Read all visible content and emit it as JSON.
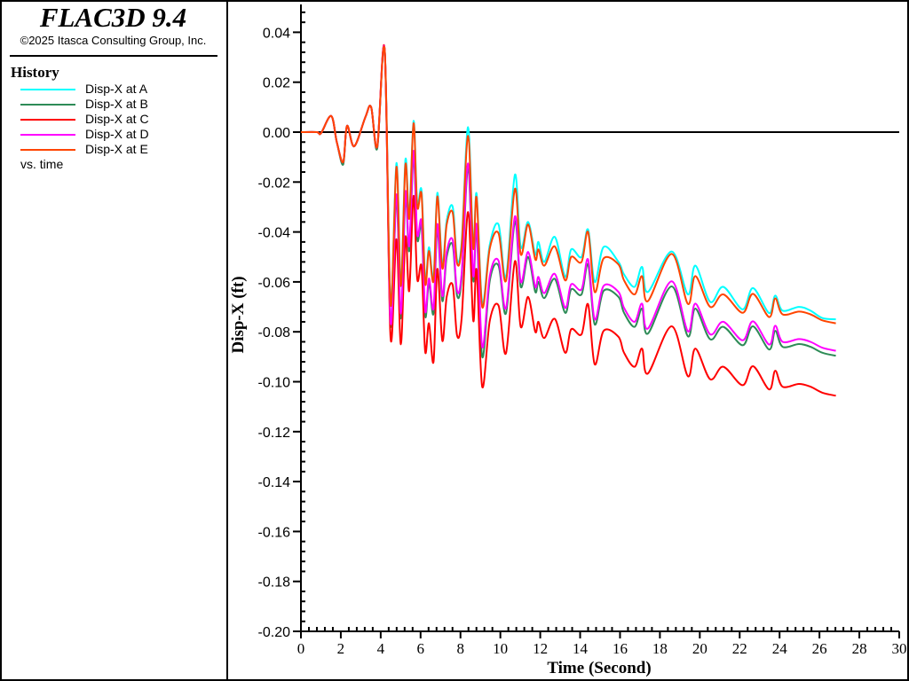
{
  "header": {
    "title": "FLAC3D 9.4",
    "copyright": "©2025 Itasca Consulting Group, Inc."
  },
  "legend": {
    "heading": "History",
    "footer": "vs. time"
  },
  "chart_data": {
    "type": "line",
    "xlabel": "Time (Second)",
    "ylabel": "Disp-X (ft)",
    "xlim": [
      0,
      30
    ],
    "ylim": [
      -0.2,
      0.05
    ],
    "xticks": [
      "0",
      "2",
      "4",
      "6",
      "8",
      "10",
      "12",
      "14",
      "16",
      "18",
      "20",
      "22",
      "24",
      "26",
      "28",
      "30"
    ],
    "yticks": [
      "0.04",
      "0.02",
      "0.00",
      "-0.02",
      "-0.04",
      "-0.06",
      "-0.08",
      "-0.10",
      "-0.12",
      "-0.14",
      "-0.16",
      "-0.18",
      "-0.20"
    ],
    "ytick_values": [
      0.04,
      0.02,
      0,
      -0.02,
      -0.04,
      -0.06,
      -0.08,
      -0.1,
      -0.12,
      -0.14,
      -0.16,
      -0.18,
      -0.2
    ],
    "reference_line": 0,
    "legend_placement": "left-panel",
    "x": [
      0,
      0.8,
      1.0,
      1.52,
      1.8,
      2.12,
      2.31,
      2.67,
      3.23,
      3.52,
      3.83,
      4.2,
      4.49,
      4.79,
      5.01,
      5.24,
      5.43,
      5.65,
      5.83,
      6.05,
      6.23,
      6.42,
      6.65,
      6.84,
      7.09,
      7.31,
      7.61,
      7.83,
      8.06,
      8.38,
      8.64,
      8.81,
      9.09,
      9.47,
      9.91,
      10.28,
      10.73,
      11.02,
      11.39,
      11.75,
      11.91,
      12.2,
      12.73,
      13.25,
      13.55,
      14.07,
      14.4,
      14.73,
      15.18,
      15.92,
      16.2,
      16.73,
      17.1,
      17.4,
      18.59,
      19.4,
      19.78,
      20.52,
      21.18,
      22.15,
      22.67,
      23.48,
      23.78,
      24.15,
      24.97,
      25.55,
      26.15,
      26.82
    ],
    "series": [
      {
        "name": "Disp-X at A",
        "color": "#00ffff",
        "values": [
          0,
          0,
          -0.0005,
          0.0065,
          -0.004,
          -0.012,
          0.0025,
          -0.0057,
          0.006,
          0.01,
          -0.0057,
          0.0327,
          -0.068,
          -0.0124,
          -0.0602,
          -0.011,
          -0.0331,
          0.0045,
          -0.0283,
          -0.0235,
          -0.0592,
          -0.0461,
          -0.0581,
          -0.0243,
          -0.0531,
          -0.0355,
          -0.03,
          -0.051,
          -0.0439,
          0.002,
          -0.045,
          -0.0247,
          -0.0685,
          -0.045,
          -0.037,
          -0.058,
          -0.017,
          -0.046,
          -0.036,
          -0.049,
          -0.044,
          -0.052,
          -0.042,
          -0.058,
          -0.047,
          -0.05,
          -0.039,
          -0.06,
          -0.046,
          -0.052,
          -0.057,
          -0.062,
          -0.054,
          -0.064,
          -0.0478,
          -0.065,
          -0.0535,
          -0.068,
          -0.062,
          -0.071,
          -0.0625,
          -0.0725,
          -0.0655,
          -0.0715,
          -0.07,
          -0.0715,
          -0.0745,
          -0.075
        ]
      },
      {
        "name": "Disp-X at B",
        "color": "#2e8b57",
        "values": [
          0,
          0,
          -0.0005,
          0.0065,
          -0.004,
          -0.013,
          0.0025,
          -0.0057,
          0.006,
          0.01,
          -0.0065,
          0.0327,
          -0.077,
          -0.0269,
          -0.0747,
          -0.026,
          -0.0476,
          -0.0095,
          -0.0428,
          -0.038,
          -0.0737,
          -0.0606,
          -0.0726,
          -0.0388,
          -0.0676,
          -0.05,
          -0.0453,
          -0.0655,
          -0.0584,
          -0.0145,
          -0.0595,
          -0.0392,
          -0.09,
          -0.0595,
          -0.0535,
          -0.0726,
          -0.0357,
          -0.062,
          -0.05,
          -0.064,
          -0.06,
          -0.0665,
          -0.0588,
          -0.0724,
          -0.063,
          -0.065,
          -0.053,
          -0.077,
          -0.0636,
          -0.066,
          -0.0724,
          -0.078,
          -0.0707,
          -0.0807,
          -0.0618,
          -0.0818,
          -0.0707,
          -0.083,
          -0.078,
          -0.0854,
          -0.0778,
          -0.0871,
          -0.0796,
          -0.086,
          -0.0849,
          -0.086,
          -0.0884,
          -0.0896
        ]
      },
      {
        "name": "Disp-X at C",
        "color": "#ff0000",
        "values": [
          0,
          0,
          -0.0005,
          0.0065,
          -0.004,
          -0.012,
          0.0025,
          -0.0057,
          0.006,
          0.01,
          -0.0057,
          0.0327,
          -0.082,
          -0.0429,
          -0.085,
          -0.042,
          -0.0636,
          -0.0255,
          -0.0588,
          -0.054,
          -0.088,
          -0.0766,
          -0.092,
          -0.0548,
          -0.0836,
          -0.066,
          -0.0613,
          -0.0815,
          -0.0744,
          -0.032,
          -0.0755,
          -0.0552,
          -0.102,
          -0.0755,
          -0.0695,
          -0.0886,
          -0.0517,
          -0.078,
          -0.066,
          -0.08,
          -0.076,
          -0.0825,
          -0.0748,
          -0.0884,
          -0.079,
          -0.081,
          -0.069,
          -0.093,
          -0.0796,
          -0.082,
          -0.0884,
          -0.094,
          -0.0867,
          -0.0967,
          -0.0778,
          -0.0978,
          -0.0867,
          -0.099,
          -0.094,
          -0.1014,
          -0.0938,
          -0.1031,
          -0.0956,
          -0.102,
          -0.1009,
          -0.102,
          -0.1044,
          -0.1056
        ]
      },
      {
        "name": "Disp-X at D",
        "color": "#ff00ff",
        "values": [
          0,
          0,
          -0.0005,
          0.0065,
          -0.004,
          -0.012,
          0.0025,
          -0.0057,
          0.006,
          0.01,
          -0.0057,
          0.0327,
          -0.076,
          -0.0249,
          -0.0727,
          -0.024,
          -0.0456,
          -0.0075,
          -0.0408,
          -0.036,
          -0.0717,
          -0.0586,
          -0.0706,
          -0.0368,
          -0.0656,
          -0.048,
          -0.0433,
          -0.0635,
          -0.0564,
          -0.0125,
          -0.0575,
          -0.0372,
          -0.086,
          -0.0575,
          -0.0515,
          -0.0706,
          -0.0337,
          -0.06,
          -0.048,
          -0.062,
          -0.058,
          -0.0645,
          -0.0568,
          -0.0704,
          -0.061,
          -0.063,
          -0.051,
          -0.075,
          -0.0616,
          -0.064,
          -0.0704,
          -0.076,
          -0.0687,
          -0.0787,
          -0.0598,
          -0.0798,
          -0.0687,
          -0.081,
          -0.076,
          -0.0834,
          -0.0758,
          -0.0851,
          -0.0776,
          -0.084,
          -0.0829,
          -0.084,
          -0.0864,
          -0.0876
        ]
      },
      {
        "name": "Disp-X at E",
        "color": "#ff4500",
        "values": [
          0,
          0,
          -0.0005,
          0.0065,
          -0.004,
          -0.012,
          0.0025,
          -0.0057,
          0.006,
          0.01,
          -0.0057,
          0.0327,
          -0.069,
          -0.0139,
          -0.0617,
          -0.013,
          -0.0346,
          0.0035,
          -0.0298,
          -0.025,
          -0.0607,
          -0.0476,
          -0.0596,
          -0.0258,
          -0.0546,
          -0.037,
          -0.0323,
          -0.0525,
          -0.0454,
          -0.0015,
          -0.0465,
          -0.0262,
          -0.07,
          -0.0465,
          -0.0405,
          -0.0596,
          -0.0227,
          -0.049,
          -0.037,
          -0.051,
          -0.047,
          -0.0535,
          -0.0458,
          -0.0594,
          -0.05,
          -0.052,
          -0.04,
          -0.064,
          -0.0506,
          -0.053,
          -0.0594,
          -0.065,
          -0.0577,
          -0.0677,
          -0.0488,
          -0.0688,
          -0.0577,
          -0.07,
          -0.065,
          -0.0724,
          -0.0648,
          -0.0741,
          -0.0666,
          -0.073,
          -0.0719,
          -0.073,
          -0.0754,
          -0.0766
        ]
      }
    ]
  }
}
